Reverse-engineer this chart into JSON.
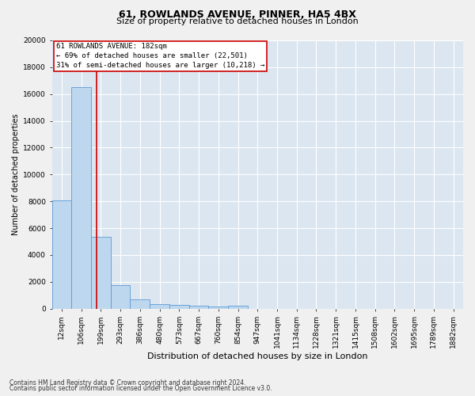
{
  "title_line1": "61, ROWLANDS AVENUE, PINNER, HA5 4BX",
  "title_line2": "Size of property relative to detached houses in London",
  "xlabel": "Distribution of detached houses by size in London",
  "ylabel": "Number of detached properties",
  "bar_color": "#bdd7ee",
  "bar_edge_color": "#5b9bd5",
  "background_color": "#dce6f1",
  "grid_color": "#ffffff",
  "categories": [
    "12sqm",
    "106sqm",
    "199sqm",
    "293sqm",
    "386sqm",
    "480sqm",
    "573sqm",
    "667sqm",
    "760sqm",
    "854sqm",
    "947sqm",
    "1041sqm",
    "1134sqm",
    "1228sqm",
    "1321sqm",
    "1415sqm",
    "1508sqm",
    "1602sqm",
    "1695sqm",
    "1789sqm",
    "1882sqm"
  ],
  "values": [
    8100,
    16500,
    5350,
    1750,
    700,
    350,
    270,
    200,
    175,
    225,
    0,
    0,
    0,
    0,
    0,
    0,
    0,
    0,
    0,
    0,
    0
  ],
  "ylim": [
    0,
    20000
  ],
  "yticks": [
    0,
    2000,
    4000,
    6000,
    8000,
    10000,
    12000,
    14000,
    16000,
    18000,
    20000
  ],
  "annotation_text": "61 ROWLANDS AVENUE: 182sqm\n← 69% of detached houses are smaller (22,501)\n31% of semi-detached houses are larger (10,218) →",
  "annotation_box_color": "#ffffff",
  "annotation_box_edge": "#cc0000",
  "red_line_x": 1.78,
  "footer_line1": "Contains HM Land Registry data © Crown copyright and database right 2024.",
  "footer_line2": "Contains public sector information licensed under the Open Government Licence v3.0.",
  "title1_fontsize": 9,
  "title2_fontsize": 8,
  "xlabel_fontsize": 8,
  "ylabel_fontsize": 7,
  "tick_fontsize": 6.5,
  "annotation_fontsize": 6.5,
  "footer_fontsize": 5.5
}
